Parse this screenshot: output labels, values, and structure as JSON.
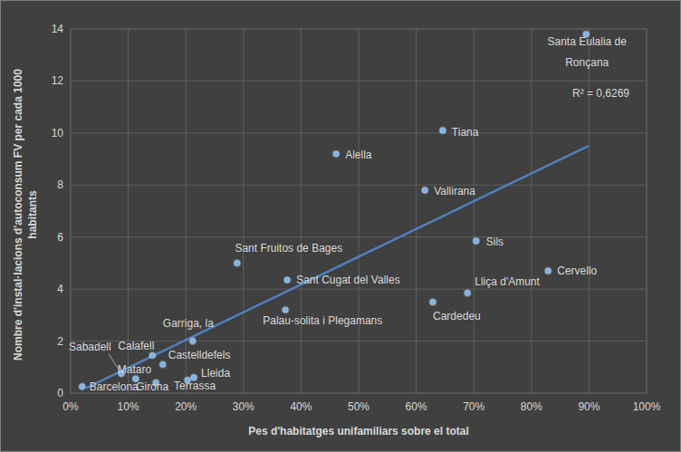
{
  "chart_data": {
    "type": "scatter",
    "x_label": "Pes d'habitatges unifamiliars sobre el total",
    "y_label": [
      "Nombre d'instal·lacions d'autoconsum FV per cada 1000",
      "habitants"
    ],
    "annotations": [
      {
        "text": "R² = 0,6269"
      }
    ],
    "xlim": [
      0,
      100
    ],
    "xticks": [
      {
        "value": 0,
        "label": "0%"
      },
      {
        "value": 10,
        "label": "10%"
      },
      {
        "value": 20,
        "label": "20%"
      },
      {
        "value": 30,
        "label": "30%"
      },
      {
        "value": 40,
        "label": "40%"
      },
      {
        "value": 50,
        "label": "50%"
      },
      {
        "value": 60,
        "label": "60%"
      },
      {
        "value": 70,
        "label": "70%"
      },
      {
        "value": 80,
        "label": "80%"
      },
      {
        "value": 90,
        "label": "90%"
      },
      {
        "value": 100,
        "label": "100%"
      }
    ],
    "ylim": [
      0,
      14
    ],
    "yticks": [
      0,
      2,
      4,
      6,
      8,
      10,
      12,
      14
    ],
    "grid": true,
    "series": [
      {
        "type": "scatter",
        "color": "#7ab0e0",
        "marker": "circle",
        "labels": [
          "Santa Eulalia de\nRonçana",
          "Tiana",
          "Alella",
          "Vallirana",
          "Sils",
          "Cervello",
          "Sant Fruitos de Bages",
          "Sant Cugat del Valles",
          "Lliça d'Amunt",
          "Cardedeu",
          "Palau-solita i Plegamans",
          "Garriga, la",
          "Calafell",
          "Castelldefels",
          "Sabadell",
          "Mataro",
          "Barcelona",
          "Girona",
          "Terrassa",
          "Lleida"
        ],
        "x": [
          89.5,
          64.6,
          46.1,
          61.5,
          70.4,
          82.9,
          28.9,
          37.6,
          68.9,
          62.9,
          37.3,
          21.2,
          14.2,
          16.0,
          8.8,
          11.3,
          2.0,
          14.8,
          20.3,
          21.4
        ],
        "values": [
          13.8,
          10.1,
          9.2,
          7.8,
          5.85,
          4.7,
          5.0,
          4.35,
          3.85,
          3.5,
          3.2,
          2.0,
          1.45,
          1.1,
          0.75,
          0.55,
          0.25,
          0.4,
          0.5,
          0.6
        ]
      },
      {
        "type": "line",
        "color": "#4f81bd",
        "line_style": "solid",
        "x": [
          2.7,
          89.9
        ],
        "values": [
          0.2,
          9.5
        ]
      }
    ]
  }
}
